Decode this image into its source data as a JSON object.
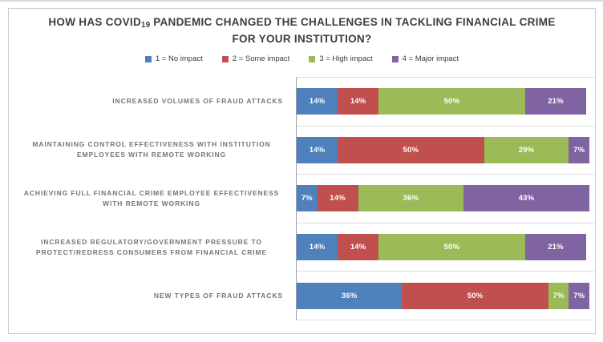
{
  "window": {
    "background": "#ffffff",
    "top_strip_color": "#d9dce2",
    "chart_border_color": "#c9ccd2",
    "gridline_color": "#dcdcdc",
    "axis_line_color": "#9aa0a6"
  },
  "chart_data": {
    "type": "bar",
    "variant": "stacked-horizontal",
    "orientation": "horizontal",
    "title": "HOW HAS COVID19 PANDEMIC CHANGED THE CHALLENGES IN TACKLING FINANCIAL CRIME FOR YOUR INSTITUTION?",
    "title_parts": {
      "pre": "HOW HAS COVID",
      "subscript": "19",
      "post": " PANDEMIC CHANGED THE CHALLENGES IN TACKLING FINANCIAL CRIME FOR YOUR INSTITUTION?"
    },
    "legend_position": "top",
    "grid": true,
    "xlim": [
      0,
      100
    ],
    "value_suffix": "%",
    "data_labels": "inside-white",
    "categories": [
      "INCREASED VOLUMES OF FRAUD ATTACKS",
      "MAINTAINING CONTROL EFFECTIVENESS WITH INSTITUTION EMPLOYEES WITH REMOTE WORKING",
      "ACHIEVING FULL FINANCIAL CRIME EMPLOYEE EFFECTIVENESS WITH REMOTE WORKING",
      "INCREASED REGULATORY/GOVERNMENT PRESSURE TO PROTECT/REDRESS CONSUMERS FROM FINANCIAL CRIME",
      "NEW TYPES OF FRAUD ATTACKS"
    ],
    "series": [
      {
        "name": "1 = No impact",
        "color": "#4F81BD",
        "values": [
          14,
          14,
          7,
          14,
          36
        ]
      },
      {
        "name": "2 = Some impact",
        "color": "#C0504D",
        "values": [
          14,
          50,
          14,
          14,
          50
        ]
      },
      {
        "name": "3 = High impact",
        "color": "#9BBB59",
        "values": [
          50,
          29,
          36,
          50,
          7
        ]
      },
      {
        "name": "4 = Major impact",
        "color": "#8064A2",
        "values": [
          21,
          7,
          43,
          21,
          7
        ]
      }
    ]
  }
}
